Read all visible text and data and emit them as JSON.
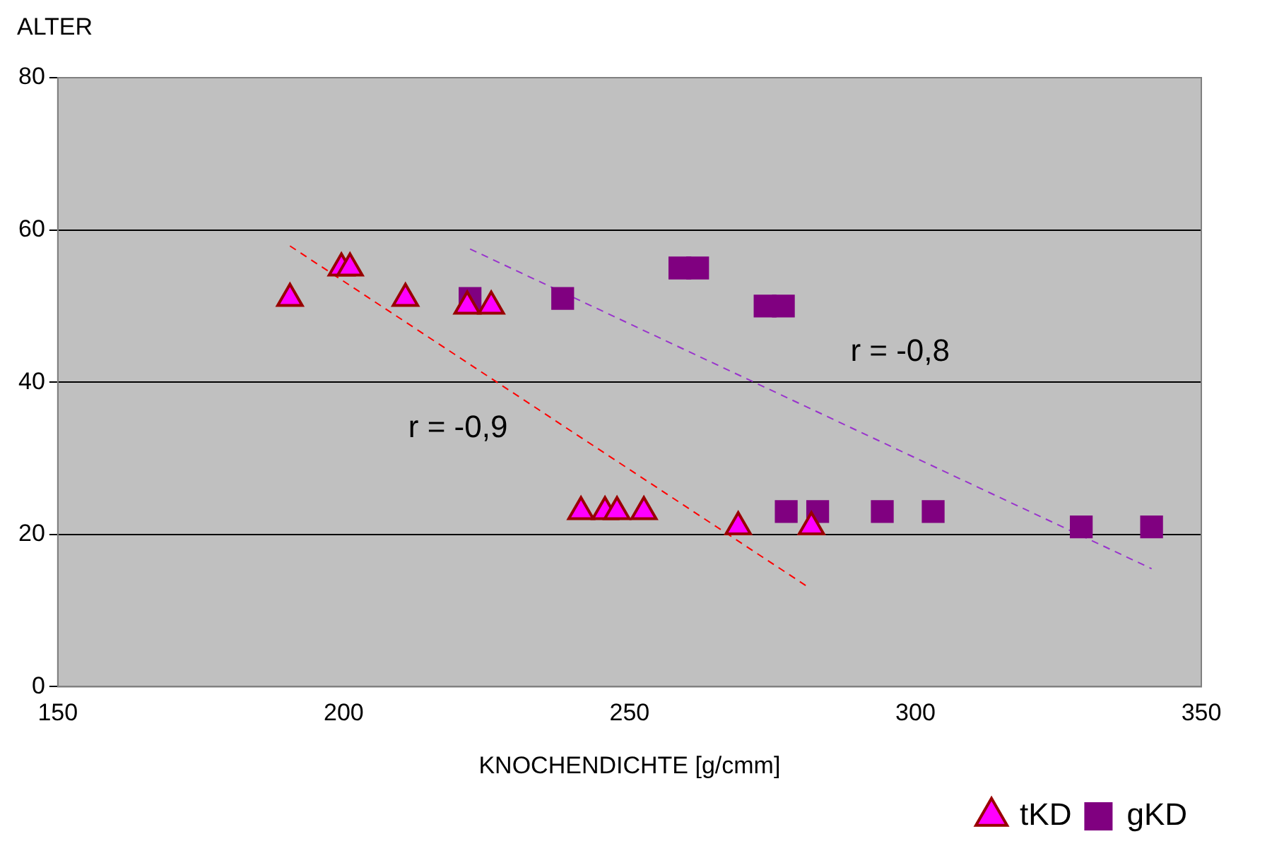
{
  "chart_data": {
    "type": "scatter",
    "xlabel": "KNOCHENDICHTE [g/cmm]",
    "ylabel": "ALTER",
    "xlim": [
      150,
      350
    ],
    "xticks": [
      150,
      200,
      250,
      300,
      350
    ],
    "ylim": [
      0,
      80
    ],
    "yticks": [
      0,
      20,
      40,
      60,
      80
    ],
    "grid": "y",
    "legend": "bottom right",
    "series": [
      {
        "name": "tKD",
        "color": "#ff00ff",
        "marker": "triangle",
        "x": [
          190.6,
          199.6,
          201.1,
          210.8,
          221.6,
          225.8,
          241.5,
          245.7,
          247.8,
          252.5,
          269.0,
          281.8
        ],
        "values": [
          51,
          55,
          55,
          51,
          50,
          50,
          23,
          23,
          23,
          23,
          21,
          21
        ]
      },
      {
        "name": "gKD",
        "color": "#800080",
        "marker": "square",
        "x": [
          222.1,
          238.3,
          258.8,
          261.9,
          273.7,
          276.9,
          277.4,
          282.9,
          294.2,
          303.1,
          329.0,
          341.3
        ],
        "values": [
          51,
          51,
          55,
          55,
          50,
          50,
          23,
          23,
          23,
          23,
          21,
          21
        ]
      },
      {
        "type": "line",
        "color": "#ff0000",
        "marker": "none",
        "line_style": "dashed",
        "x": [
          190.6,
          281.6
        ],
        "values": [
          57.9,
          12.9
        ]
      },
      {
        "type": "line",
        "color": "#9933cc",
        "marker": "none",
        "line_style": "dashed",
        "x": [
          222.1,
          341.3
        ],
        "values": [
          57.5,
          15.5
        ]
      }
    ],
    "annotations": [
      "r = -0,9",
      "r = -0,8"
    ]
  }
}
